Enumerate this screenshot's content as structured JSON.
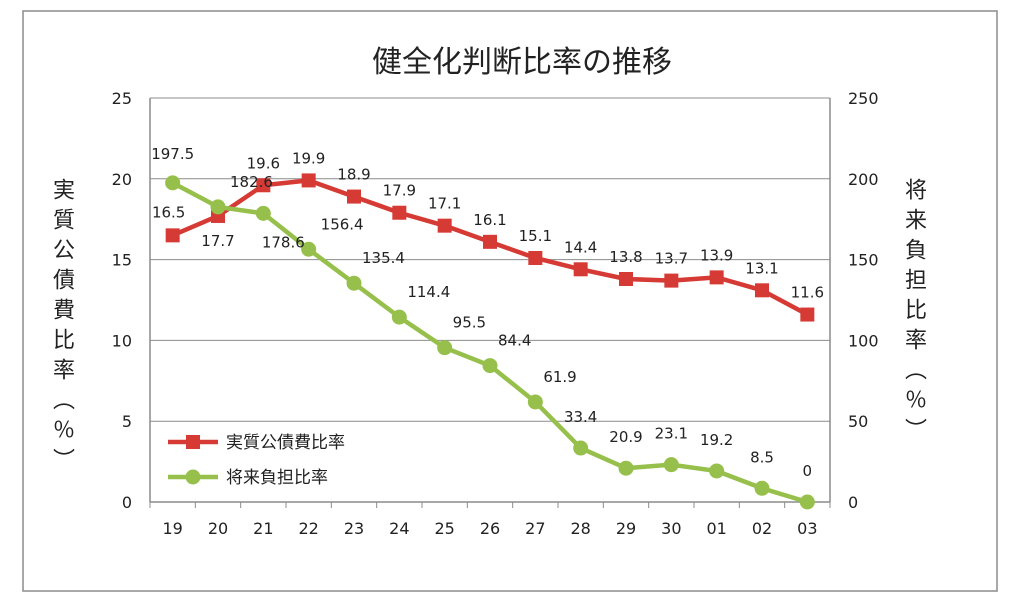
{
  "chart_data": {
    "type": "line",
    "title": "健全化判断比率の推移",
    "ylabel_left": "実質公債費比率（％）",
    "ylabel_right": "将来負担比率（％）",
    "categories": [
      "19",
      "20",
      "21",
      "22",
      "23",
      "24",
      "25",
      "26",
      "27",
      "28",
      "29",
      "30",
      "01",
      "02",
      "03"
    ],
    "y_left": {
      "min": 0,
      "max": 25,
      "ticks": [
        "0",
        "5",
        "10",
        "15",
        "20",
        "25"
      ]
    },
    "y_right": {
      "min": 0,
      "max": 250,
      "ticks": [
        "0",
        "50",
        "100",
        "150",
        "200",
        "250"
      ]
    },
    "grid": true,
    "legend_position": "bottom-left",
    "series": [
      {
        "name": "実質公債費比率",
        "axis": "left",
        "marker": "square",
        "color": "#d63a34",
        "values": [
          16.5,
          17.7,
          19.6,
          19.9,
          18.9,
          17.9,
          17.1,
          16.1,
          15.1,
          14.4,
          13.8,
          13.7,
          13.9,
          13.1,
          11.6
        ],
        "labels": [
          "16.5",
          "17.7",
          "19.6",
          "19.9",
          "18.9",
          "17.9",
          "17.1",
          "16.1",
          "15.1",
          "14.4",
          "13.8",
          "13.7",
          "13.9",
          "13.1",
          "11.6"
        ]
      },
      {
        "name": "将来負担比率",
        "axis": "right",
        "marker": "circle",
        "color": "#96c04b",
        "values": [
          197.5,
          182.6,
          178.6,
          156.4,
          135.4,
          114.4,
          95.5,
          84.4,
          61.9,
          33.4,
          20.9,
          23.1,
          19.2,
          8.5,
          0
        ],
        "labels": [
          "197.5",
          "182.6",
          "178.6",
          "156.4",
          "135.4",
          "114.4",
          "95.5",
          "84.4",
          "61.9",
          "33.4",
          "20.9",
          "23.1",
          "19.2",
          "8.5",
          "0"
        ]
      }
    ]
  }
}
